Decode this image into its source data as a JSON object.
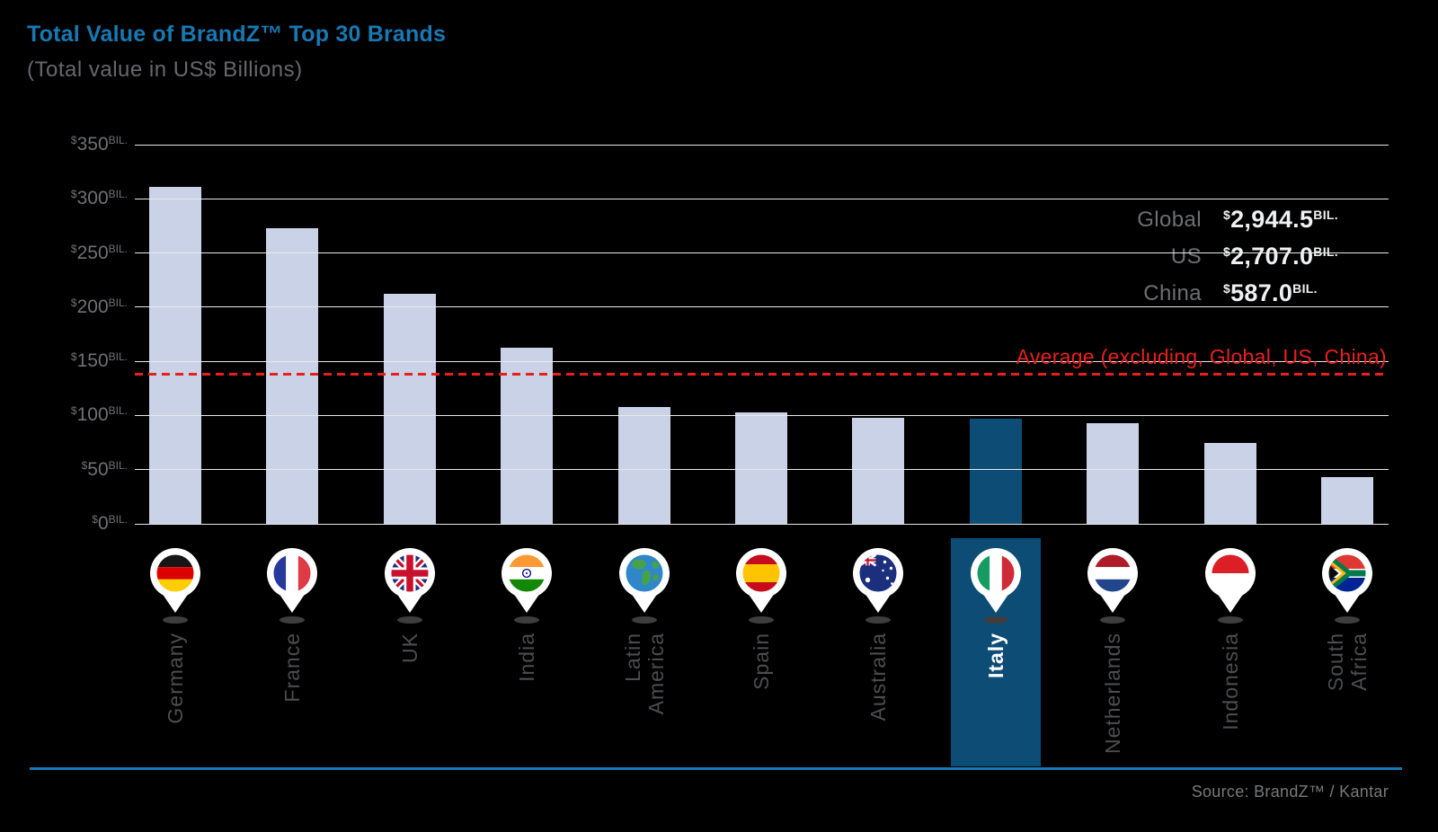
{
  "chart_data": {
    "type": "bar",
    "title": "Total Value of BrandZ™ Top 30 Brands",
    "subtitle": "(Total value in US$ Billions)",
    "categories": [
      "Germany",
      "France",
      "UK",
      "India",
      "Latin\nAmerica",
      "Spain",
      "Australia",
      "Italy",
      "Netherlands",
      "Indonesia",
      "South\nAfrica"
    ],
    "values": [
      311,
      273,
      212,
      163,
      108,
      103,
      98,
      97,
      93,
      75,
      43
    ],
    "flags": [
      "germany",
      "france",
      "uk",
      "india",
      "globe",
      "spain",
      "australia",
      "italy",
      "netherlands",
      "indonesia",
      "south-africa"
    ],
    "highlight_index": 7,
    "ylim": [
      0,
      350
    ],
    "y_ticks": [
      350,
      300,
      250,
      200,
      150,
      100,
      50,
      0
    ],
    "y_prefix": "$",
    "y_suffix": "BIL.",
    "grid": true,
    "average_line": {
      "value": 138,
      "label": "Average (excluding, Global, US, China)",
      "color": "#e8201d"
    },
    "reference_stats": [
      {
        "label": "Global",
        "value": "2,944.5"
      },
      {
        "label": "US",
        "value": "2,707.0"
      },
      {
        "label": "China",
        "value": "587.0"
      }
    ],
    "bar_color": "#c9d2e6",
    "highlight_color": "#0d4c74",
    "accent_color": "#1779b4",
    "background_color": "#000000",
    "source": "Source: BrandZ™ / Kantar"
  }
}
